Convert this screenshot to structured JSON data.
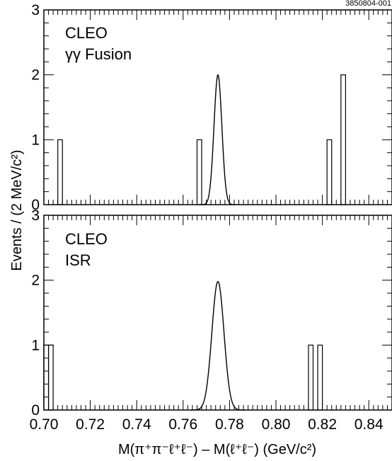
{
  "figure_code": "3850804-001",
  "chart_data": [
    {
      "type": "bar",
      "panel": "top",
      "label_line1": "CLEO",
      "label_line2": "γγ Fusion",
      "xlim": [
        0.7,
        0.85
      ],
      "ylim": [
        0,
        3
      ],
      "bin_width": 0.002,
      "histogram": [
        {
          "x": 0.706,
          "count": 1
        },
        {
          "x": 0.766,
          "count": 1
        },
        {
          "x": 0.822,
          "count": 1
        },
        {
          "x": 0.828,
          "count": 2
        }
      ],
      "fit_curve": {
        "shape": "gaussian",
        "mean": 0.775,
        "sigma": 0.0017,
        "peak": 2.0
      },
      "yticks": [
        "0",
        "1",
        "2",
        "3"
      ]
    },
    {
      "type": "bar",
      "panel": "bottom",
      "label_line1": "CLEO",
      "label_line2": "ISR",
      "xlim": [
        0.7,
        0.85
      ],
      "ylim": [
        0,
        3
      ],
      "bin_width": 0.002,
      "histogram": [
        {
          "x": 0.7,
          "count": 1
        },
        {
          "x": 0.702,
          "count": 1
        },
        {
          "x": 0.814,
          "count": 1
        },
        {
          "x": 0.818,
          "count": 1
        }
      ],
      "fit_curve": {
        "shape": "gaussian",
        "mean": 0.775,
        "sigma": 0.0026,
        "peak": 1.98
      },
      "yticks": [
        "0",
        "1",
        "2",
        "3"
      ],
      "xticks": [
        "0.70",
        "0.72",
        "0.74",
        "0.76",
        "0.78",
        "0.80",
        "0.82",
        "0.84"
      ]
    }
  ],
  "ylabel": "Events / (2 MeV/c²)",
  "xlabel": "M(π⁺π⁻ℓ⁺ℓ⁻) – M(ℓ⁺ℓ⁻) (GeV/c²)"
}
